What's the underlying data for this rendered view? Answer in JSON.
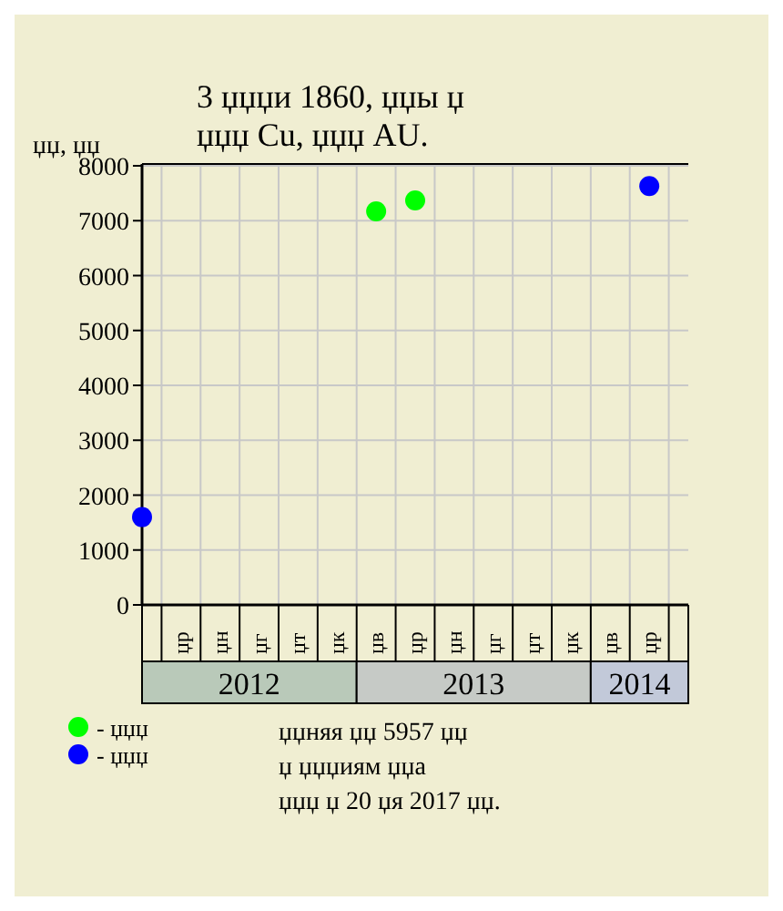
{
  "chart_data": {
    "type": "scatter",
    "title": "3 џџџи 1860, џџы џ\nџџџ Cu, џџџ AU.",
    "ylabel": "џџ, џџ",
    "categories": [
      null,
      "џр",
      "џн",
      "џг",
      "џт",
      "џк",
      "џв",
      "џр",
      "џн",
      "џг",
      "џт",
      "џк",
      "џв",
      "џр",
      null
    ],
    "series": [
      {
        "name": "- џџџ",
        "color": "#00ff00",
        "values": [
          null,
          null,
          null,
          null,
          null,
          null,
          7170,
          7370,
          null,
          null,
          null,
          null,
          null,
          null,
          null
        ]
      },
      {
        "name": "- џџџ",
        "color": "#0000ff",
        "values": [
          1600,
          null,
          null,
          null,
          null,
          null,
          null,
          null,
          null,
          null,
          null,
          null,
          null,
          7630,
          null
        ]
      }
    ],
    "ylim": [
      0,
      8000
    ],
    "yticks": [
      0,
      1000,
      2000,
      3000,
      4000,
      5000,
      6000,
      7000,
      8000
    ],
    "grid": true,
    "marker": "circle",
    "legend": "bottom left",
    "annotations": [
      "2012",
      "2013",
      "2014",
      "џџняя џџ 5957 џџ",
      "џ џџџиям џџа",
      "џџџ џ 20 џя 2017 џџ."
    ]
  }
}
